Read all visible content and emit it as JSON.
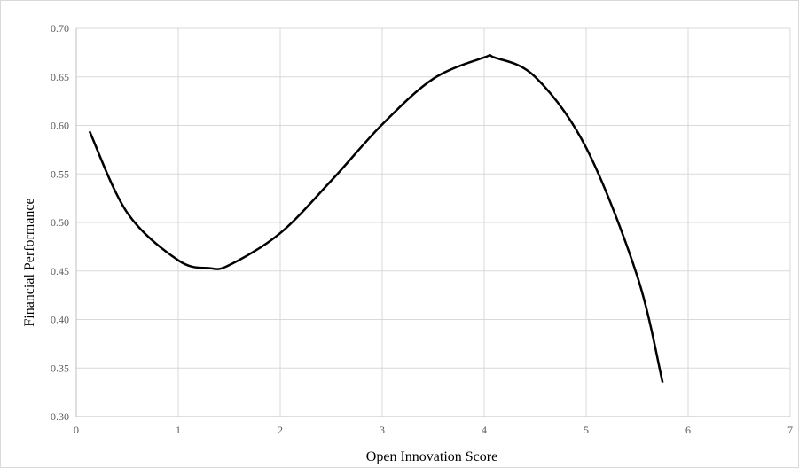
{
  "chart_data": {
    "type": "line",
    "xlabel": "Open Innovation Score",
    "ylabel": "Financial Performance",
    "xlim": [
      0,
      7
    ],
    "ylim": [
      0.3,
      0.7
    ],
    "x_ticks": [
      "0",
      "1",
      "2",
      "3",
      "4",
      "5",
      "6",
      "7"
    ],
    "y_ticks": [
      "0.30",
      "0.35",
      "0.40",
      "0.45",
      "0.50",
      "0.55",
      "0.60",
      "0.65",
      "0.70"
    ],
    "grid": true,
    "legend": "none",
    "series": [
      {
        "color": "#000000",
        "x": [
          0.13,
          0.5,
          1.0,
          1.3,
          1.5,
          2.0,
          2.5,
          3.0,
          3.5,
          4.0,
          4.1,
          4.5,
          5.0,
          5.5,
          5.75
        ],
        "y": [
          0.594,
          0.51,
          0.461,
          0.453,
          0.456,
          0.489,
          0.543,
          0.601,
          0.648,
          0.67,
          0.67,
          0.65,
          0.577,
          0.445,
          0.335
        ]
      }
    ]
  }
}
